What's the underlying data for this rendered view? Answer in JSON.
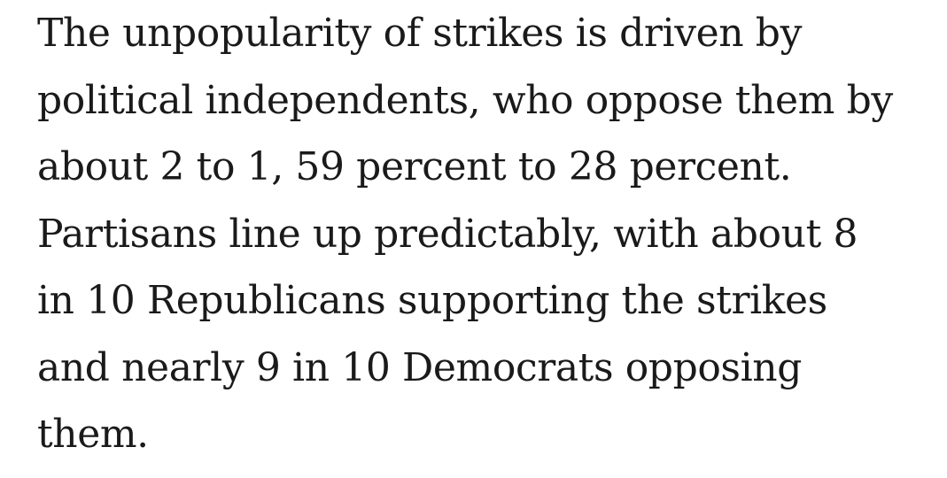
{
  "article": {
    "paragraph_lines": [
      "The unpopularity of strikes is driven by",
      "political independents, who oppose them by",
      "about 2 to 1, 59 percent to 28 percent.",
      "Partisans line up predictably, with about 8",
      "in 10 Republicans supporting the strikes",
      "and nearly 9 in 10 Democrats opposing",
      "them."
    ]
  }
}
